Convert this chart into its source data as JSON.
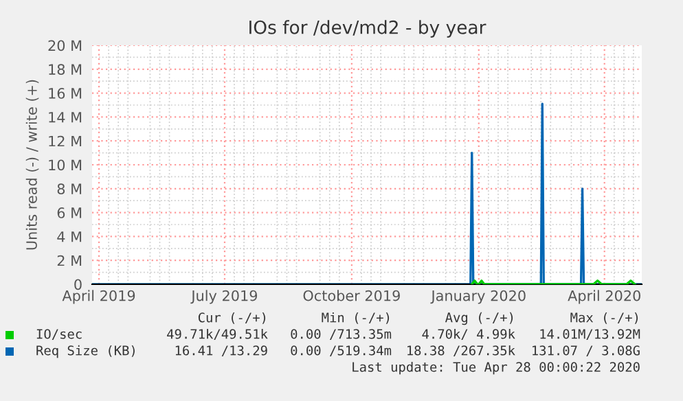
{
  "chart_data": {
    "type": "line",
    "title": "IOs for /dev/md2 - by year",
    "ylabel": "Units read (-) / write (+)",
    "xlim": [
      "2019-03-27",
      "2020-04-28"
    ],
    "xticks": [
      {
        "value": "2019-04-01",
        "label": "April 2019"
      },
      {
        "value": "2019-07-01",
        "label": "July 2019"
      },
      {
        "value": "2019-10-01",
        "label": "October 2019"
      },
      {
        "value": "2020-01-01",
        "label": "January 2020"
      },
      {
        "value": "2020-04-01",
        "label": "April 2020"
      }
    ],
    "ylim": [
      0,
      20000000
    ],
    "yticks": [
      0,
      {
        "value": 2000000,
        "label": "2 M"
      },
      {
        "value": 4000000,
        "label": "4 M"
      },
      {
        "value": 6000000,
        "label": "6 M"
      },
      {
        "value": 8000000,
        "label": "8 M"
      },
      {
        "value": 10000000,
        "label": "10 M"
      },
      {
        "value": 12000000,
        "label": "12 M"
      },
      {
        "value": 14000000,
        "label": "14 M"
      },
      {
        "value": 16000000,
        "label": "16 M"
      },
      {
        "value": 18000000,
        "label": "18 M"
      },
      {
        "value": 20000000,
        "label": "20 M"
      }
    ],
    "grid": true,
    "legend": "bottom",
    "series": [
      {
        "name": "IO/sec",
        "color": "#00cc00",
        "x": [
          "2019-12-27",
          "2019-12-29",
          "2019-12-31",
          "2020-01-01",
          "2020-01-03",
          "2020-01-05",
          "2020-03-24",
          "2020-03-27",
          "2020-03-30",
          "2020-04-17",
          "2020-04-20",
          "2020-04-23"
        ],
        "values": [
          0,
          300000,
          0,
          0,
          300000,
          0,
          0,
          300000,
          0,
          0,
          300000,
          0
        ]
      },
      {
        "name": "Req Size (KB)",
        "color": "#0066b3",
        "x": [
          "2019-03-27",
          "2019-12-26",
          "2019-12-27",
          "2019-12-28",
          "2020-02-15",
          "2020-02-16",
          "2020-02-17",
          "2020-03-15",
          "2020-03-16",
          "2020-03-17",
          "2020-04-28"
        ],
        "values": [
          0,
          0,
          11000000,
          0,
          0,
          15100000,
          0,
          0,
          8000000,
          0,
          0
        ]
      }
    ],
    "annotations": [
      "Cur (-/+)",
      "Min (-/+)",
      "Avg (-/+)",
      "Max (-/+)",
      "49.71k/49.51k",
      "0.00 /713.35m",
      "4.70k/ 4.99k",
      "14.01M/13.92M",
      "16.41 /13.29",
      "0.00 /519.34m",
      "18.38 /267.35k",
      "131.07 / 3.08G",
      "Last update: Tue Apr 28 00:00:22 2020"
    ]
  }
}
